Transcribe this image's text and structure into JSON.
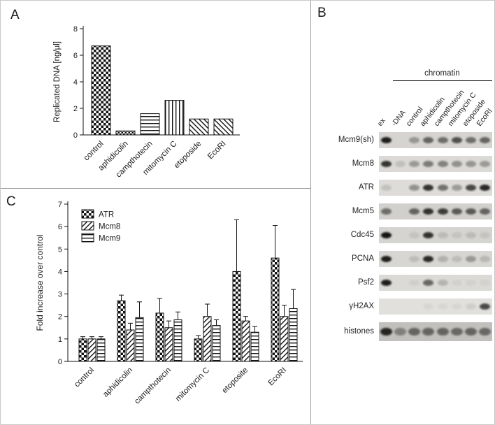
{
  "panels": {
    "a": {
      "label": "A"
    },
    "b": {
      "label": "B"
    },
    "c": {
      "label": "C"
    }
  },
  "chart_data": [
    {
      "id": "panelA",
      "type": "bar",
      "title": "",
      "xlabel": "",
      "ylabel": "Replicated DNA [ng/µl]",
      "ylim": [
        0,
        8
      ],
      "yticks": [
        0,
        2,
        4,
        6,
        8
      ],
      "grid": false,
      "categories": [
        "control",
        "aphidicolin",
        "campthotecin",
        "mitomycin C",
        "etoposide",
        "EcoRI"
      ],
      "values": [
        6.7,
        0.3,
        1.6,
        2.6,
        1.2,
        1.2
      ],
      "patterns": [
        "checker",
        "checker-small",
        "hlines",
        "vlines",
        "diag-up",
        "diag-up"
      ]
    },
    {
      "id": "panelC",
      "type": "bar",
      "title": "",
      "xlabel": "",
      "ylabel": "Fold increase over control",
      "ylim": [
        0,
        7
      ],
      "yticks": [
        0,
        1,
        2,
        3,
        4,
        5,
        6,
        7
      ],
      "grid": false,
      "legend_position": "top-left",
      "categories": [
        "control",
        "aphidicolin",
        "campthotecin",
        "mitomycin C",
        "etoposite",
        "EcoRI"
      ],
      "series": [
        {
          "name": "ATR",
          "pattern": "checker",
          "values": [
            1.0,
            2.7,
            2.15,
            1.0,
            4.0,
            4.6
          ],
          "errors": [
            0.1,
            0.25,
            0.65,
            0.15,
            2.3,
            1.45
          ]
        },
        {
          "name": "Mcm8",
          "pattern": "diag-down",
          "values": [
            1.0,
            1.4,
            1.5,
            2.0,
            1.8,
            2.0
          ],
          "errors": [
            0.1,
            0.3,
            0.3,
            0.55,
            0.2,
            0.5
          ]
        },
        {
          "name": "Mcm9",
          "pattern": "hlines",
          "values": [
            1.0,
            1.95,
            1.85,
            1.6,
            1.3,
            2.35
          ],
          "errors": [
            0.1,
            0.7,
            0.35,
            0.25,
            0.25,
            0.85
          ]
        }
      ]
    }
  ],
  "blot_panel": {
    "group_label": "chromatin",
    "lanes": [
      "ex",
      "-DNA",
      "control",
      "aphidicolin",
      "campthotecin",
      "mitomycin C",
      "etoposide",
      "EcoRI"
    ],
    "rows": [
      {
        "label": "Mcm9(sh)",
        "bg": "#d6d4d0",
        "bands": [
          0.9,
          0,
          0.3,
          0.55,
          0.5,
          0.65,
          0.5,
          0.55
        ]
      },
      {
        "label": "Mcm8",
        "bg": "#dcdad6",
        "bands": [
          0.8,
          0.12,
          0.3,
          0.45,
          0.42,
          0.35,
          0.32,
          0.3
        ]
      },
      {
        "label": "ATR",
        "bg": "#deDCD8",
        "bands": [
          0.12,
          0,
          0.35,
          0.8,
          0.5,
          0.3,
          0.7,
          0.85
        ]
      },
      {
        "label": "Mcm5",
        "bg": "#d2d0cc",
        "bands": [
          0.5,
          0,
          0.55,
          0.8,
          0.75,
          0.6,
          0.6,
          0.55
        ]
      },
      {
        "label": "Cdc45",
        "bg": "#d6d4d0",
        "bands": [
          0.95,
          0,
          0.08,
          0.8,
          0.12,
          0.08,
          0.12,
          0.08
        ]
      },
      {
        "label": "PCNA",
        "bg": "#d8d6d2",
        "bands": [
          0.9,
          0,
          0.12,
          0.85,
          0.18,
          0.12,
          0.3,
          0.15
        ]
      },
      {
        "label": "Psf2",
        "bg": "#dcdad6",
        "bands": [
          0.9,
          0,
          0.05,
          0.55,
          0.18,
          0.04,
          0.04,
          0.04
        ]
      },
      {
        "label": "γH2AX",
        "bg": "#e2e0dc",
        "bands": [
          0,
          0,
          0,
          0.04,
          0.04,
          0.04,
          0.08,
          0.7
        ]
      },
      {
        "label": "histones",
        "bg": "#c2c0bc",
        "bands": [
          0.85,
          0.35,
          0.5,
          0.5,
          0.5,
          0.48,
          0.5,
          0.48
        ]
      }
    ]
  }
}
